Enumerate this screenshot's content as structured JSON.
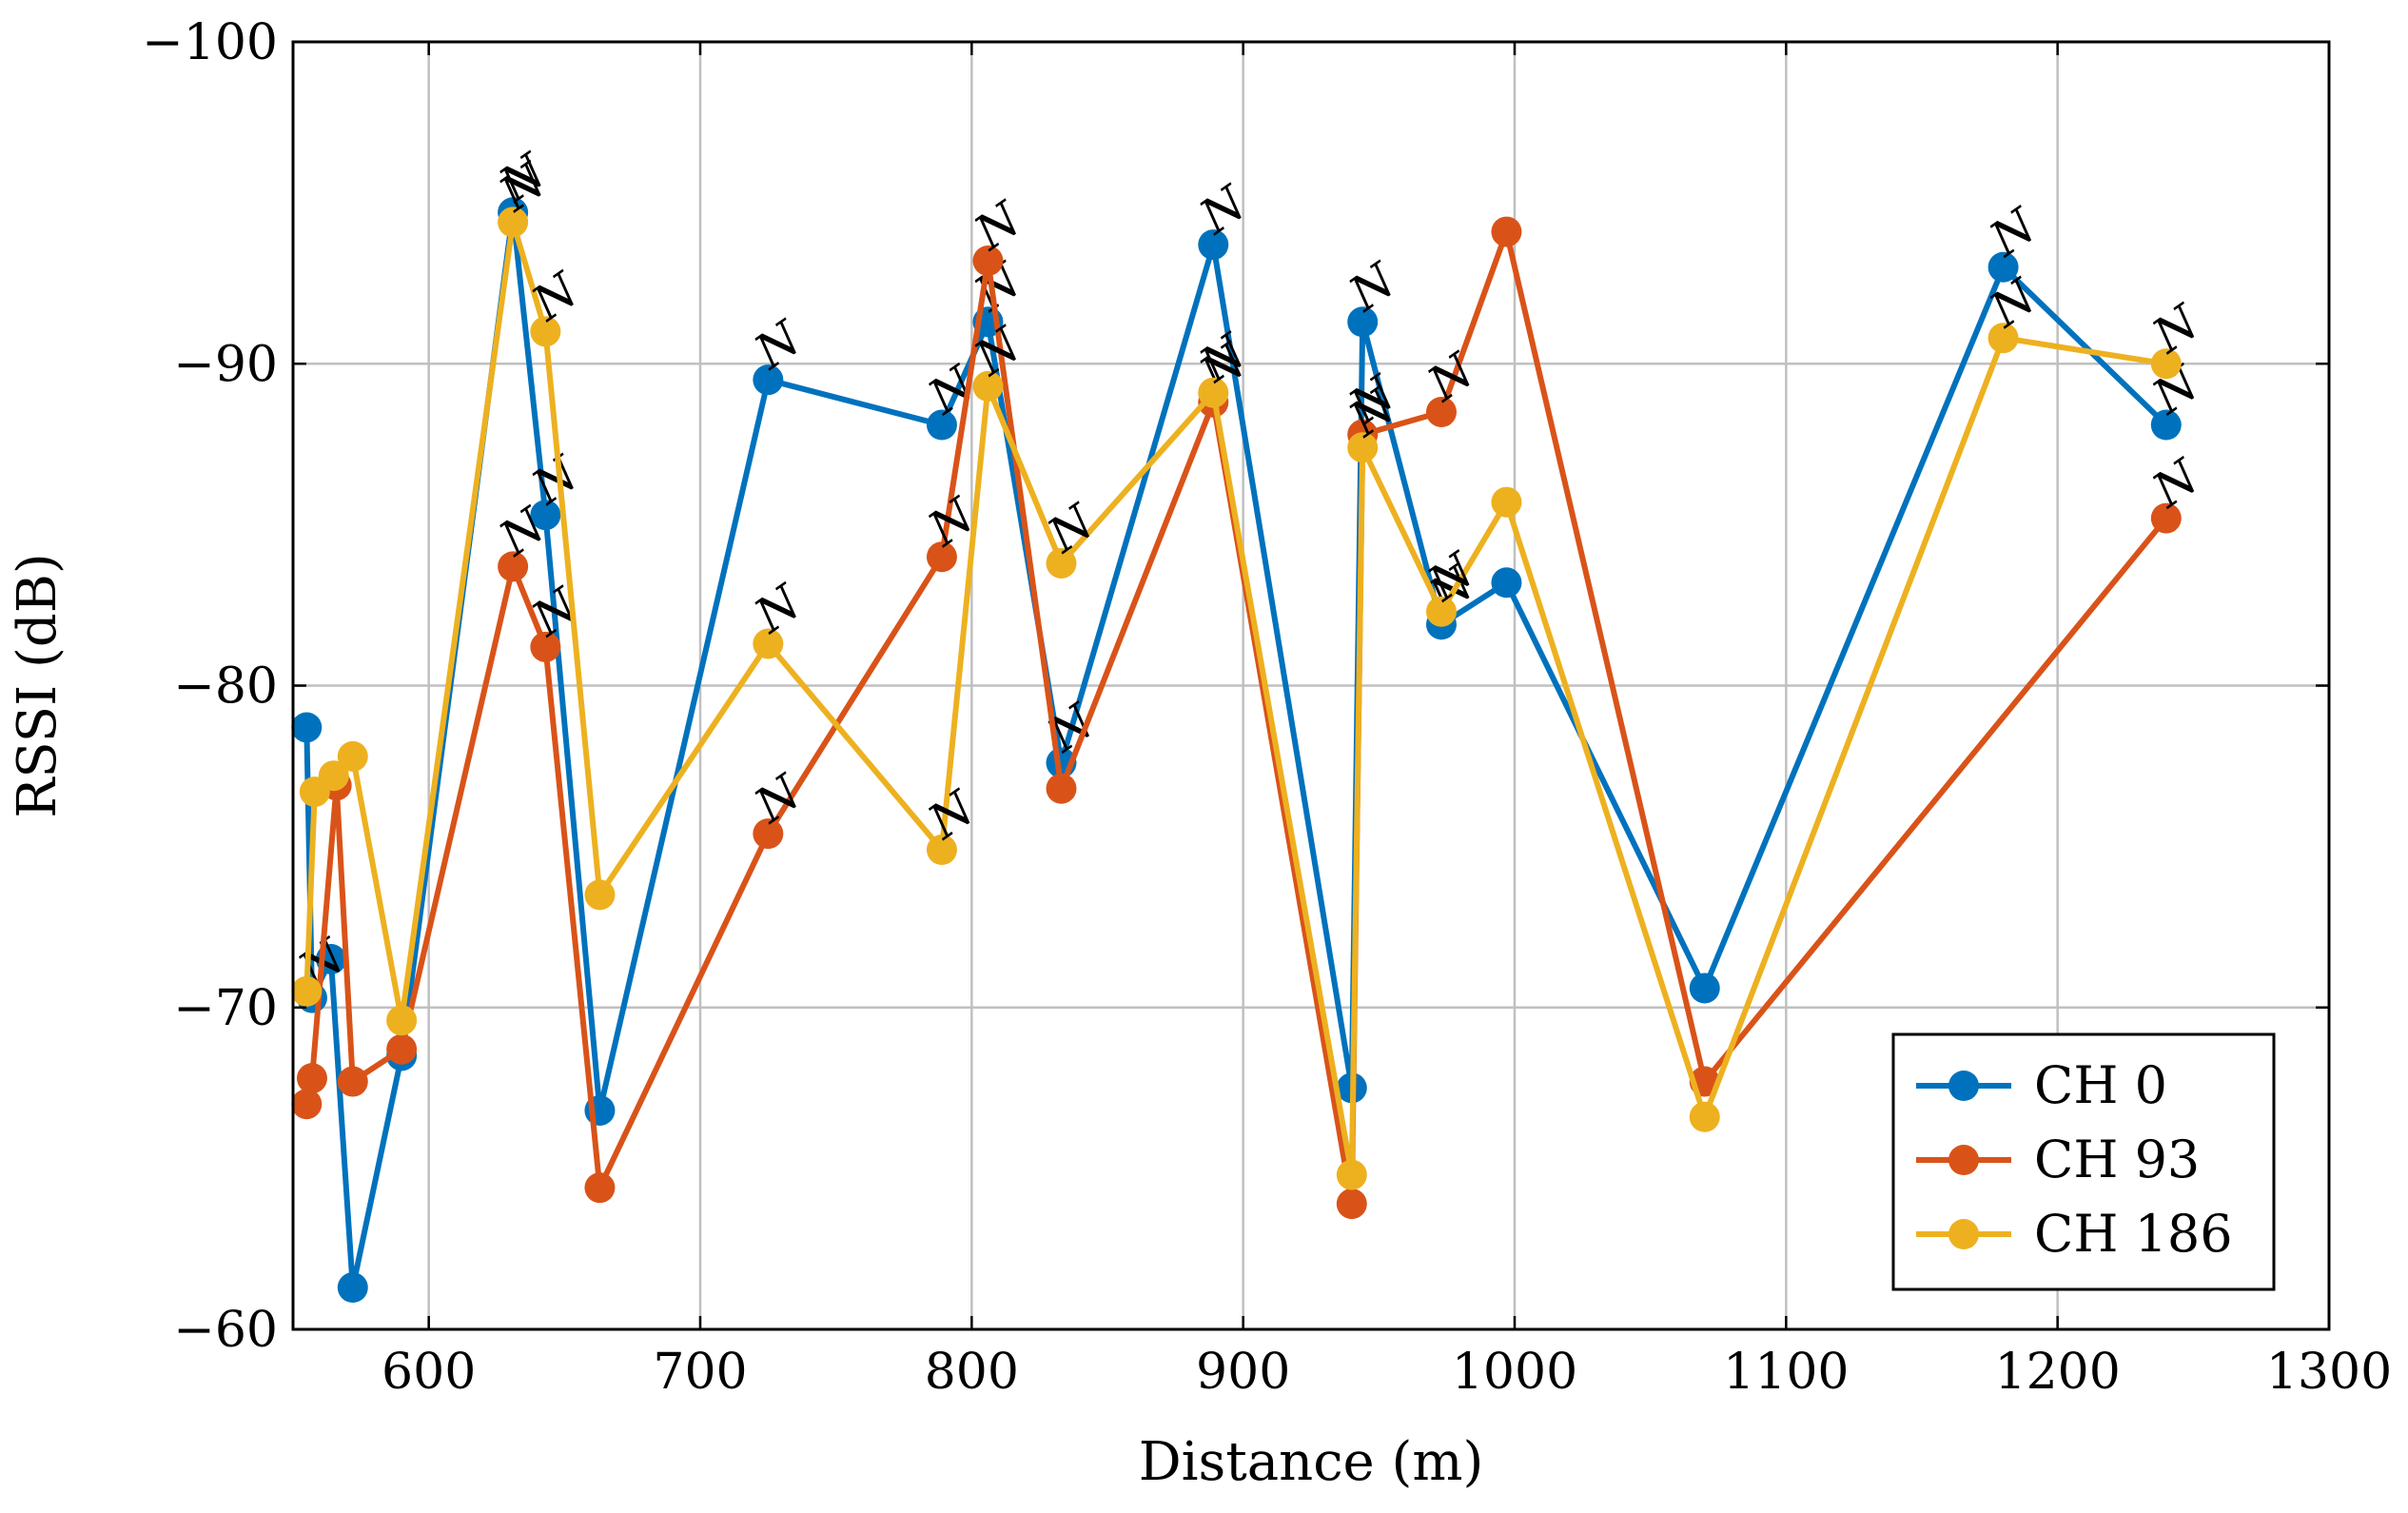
{
  "chart_data": {
    "type": "line",
    "title": "",
    "xlabel": "Distance (m)",
    "ylabel": "RSSI (dB)",
    "xlim": [
      550,
      1300
    ],
    "ylim": [
      -100,
      -60
    ],
    "y_reversed": true,
    "xticks": [
      600,
      700,
      800,
      900,
      1000,
      1100,
      1200,
      1300
    ],
    "yticks": [
      -100,
      -90,
      -80,
      -70,
      -60
    ],
    "xtick_labels": [
      "600",
      "700",
      "800",
      "900",
      "1000",
      "1100",
      "1200",
      "1300"
    ],
    "ytick_labels": [
      "−100",
      "−90",
      "−80",
      "−70",
      "−60"
    ],
    "grid": true,
    "legend_position": "bottom-right",
    "point_annotation": "N",
    "series": [
      {
        "name": "CH 0",
        "color": "#0072BD",
        "points": [
          {
            "x": 555,
            "y": -78.7
          },
          {
            "x": 557,
            "y": -70.3,
            "nlos": true
          },
          {
            "x": 564,
            "y": -71.5
          },
          {
            "x": 572,
            "y": -61.3
          },
          {
            "x": 590,
            "y": -68.5
          },
          {
            "x": 631,
            "y": -94.7,
            "nlos": true
          },
          {
            "x": 643,
            "y": -85.3,
            "nlos": true
          },
          {
            "x": 663,
            "y": -66.8
          },
          {
            "x": 725,
            "y": -89.5,
            "nlos": true
          },
          {
            "x": 789,
            "y": -88.1,
            "nlos": true
          },
          {
            "x": 806,
            "y": -91.3,
            "nlos": true
          },
          {
            "x": 833,
            "y": -77.6,
            "nlos": true
          },
          {
            "x": 889,
            "y": -93.7,
            "nlos": true
          },
          {
            "x": 940,
            "y": -67.5
          },
          {
            "x": 944,
            "y": -91.3,
            "nlos": true
          },
          {
            "x": 973,
            "y": -81.9,
            "nlos": true
          },
          {
            "x": 997,
            "y": -83.2
          },
          {
            "x": 1070,
            "y": -70.6
          },
          {
            "x": 1180,
            "y": -93.0,
            "nlos": true
          },
          {
            "x": 1240,
            "y": -88.1,
            "nlos": true
          }
        ]
      },
      {
        "name": "CH 93",
        "color": "#D95319",
        "points": [
          {
            "x": 555,
            "y": -67.0
          },
          {
            "x": 557,
            "y": -67.8
          },
          {
            "x": 566,
            "y": -76.9
          },
          {
            "x": 572,
            "y": -67.7
          },
          {
            "x": 590,
            "y": -68.7
          },
          {
            "x": 631,
            "y": -83.7,
            "nlos": true
          },
          {
            "x": 643,
            "y": -81.2,
            "nlos": true
          },
          {
            "x": 663,
            "y": -64.4
          },
          {
            "x": 725,
            "y": -75.4,
            "nlos": true
          },
          {
            "x": 789,
            "y": -84.0,
            "nlos": true
          },
          {
            "x": 806,
            "y": -93.2,
            "nlos": true
          },
          {
            "x": 833,
            "y": -76.8
          },
          {
            "x": 889,
            "y": -88.8,
            "nlos": true
          },
          {
            "x": 940,
            "y": -63.9
          },
          {
            "x": 944,
            "y": -87.8,
            "nlos": true
          },
          {
            "x": 973,
            "y": -88.5,
            "nlos": true
          },
          {
            "x": 997,
            "y": -94.1
          },
          {
            "x": 1070,
            "y": -67.7
          },
          {
            "x": 1240,
            "y": -85.2,
            "nlos": true
          }
        ]
      },
      {
        "name": "CH 186",
        "color": "#EDB120",
        "points": [
          {
            "x": 555,
            "y": -70.5
          },
          {
            "x": 558,
            "y": -76.7
          },
          {
            "x": 565,
            "y": -77.2
          },
          {
            "x": 572,
            "y": -77.8
          },
          {
            "x": 590,
            "y": -69.6
          },
          {
            "x": 631,
            "y": -94.4,
            "nlos": true
          },
          {
            "x": 643,
            "y": -91.0,
            "nlos": true
          },
          {
            "x": 663,
            "y": -73.5
          },
          {
            "x": 725,
            "y": -81.3,
            "nlos": true
          },
          {
            "x": 789,
            "y": -74.9,
            "nlos": true
          },
          {
            "x": 806,
            "y": -89.3,
            "nlos": true
          },
          {
            "x": 833,
            "y": -83.8,
            "nlos": true
          },
          {
            "x": 889,
            "y": -89.1,
            "nlos": true
          },
          {
            "x": 940,
            "y": -64.8
          },
          {
            "x": 944,
            "y": -87.4,
            "nlos": true
          },
          {
            "x": 973,
            "y": -82.3,
            "nlos": true
          },
          {
            "x": 997,
            "y": -85.7
          },
          {
            "x": 1070,
            "y": -66.6
          },
          {
            "x": 1180,
            "y": -90.8,
            "nlos": true
          },
          {
            "x": 1240,
            "y": -90.0,
            "nlos": true
          }
        ]
      }
    ]
  }
}
